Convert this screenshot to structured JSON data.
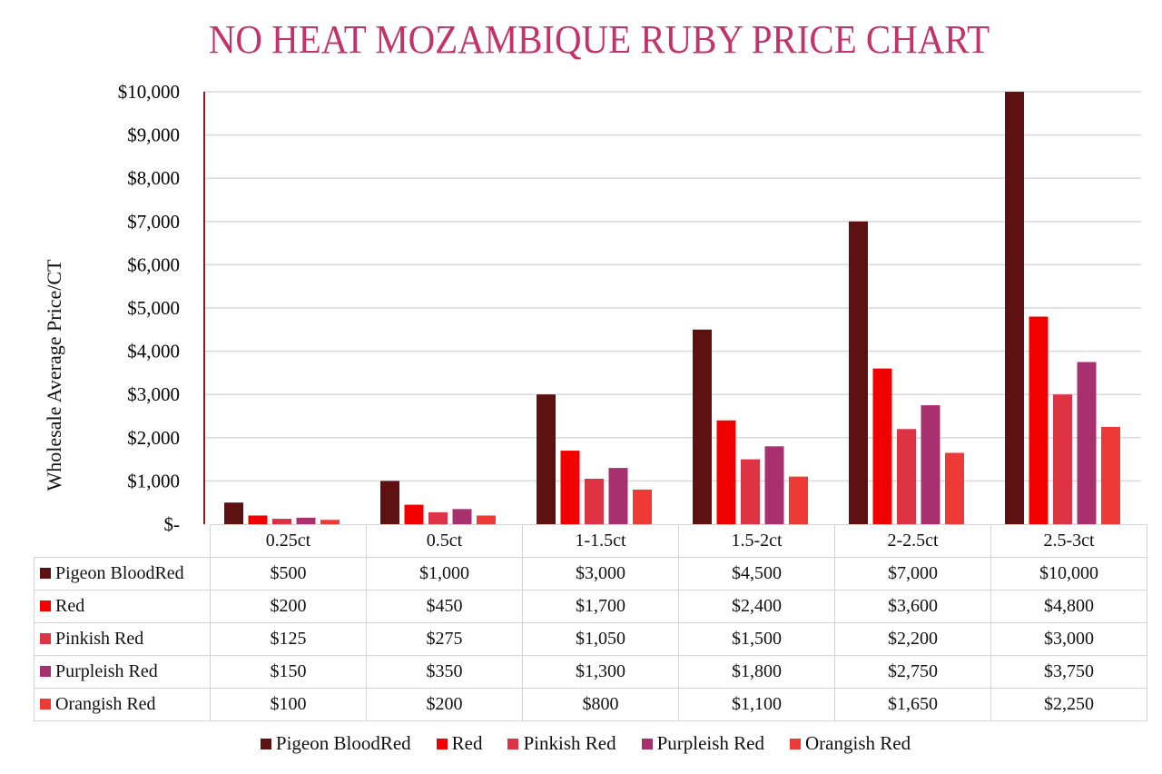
{
  "chart_data": {
    "type": "bar",
    "title": "NO HEAT MOZAMBIQUE RUBY PRICE CHART",
    "xlabel": "",
    "ylabel": "Wholesale Average Price/CT",
    "ylim": [
      0,
      10000
    ],
    "yticks": [
      0,
      1000,
      2000,
      3000,
      4000,
      5000,
      6000,
      7000,
      8000,
      9000,
      10000
    ],
    "ytick_labels": [
      "$-",
      "$1,000",
      "$2,000",
      "$3,000",
      "$4,000",
      "$5,000",
      "$6,000",
      "$7,000",
      "$8,000",
      "$9,000",
      "$10,000"
    ],
    "grid": true,
    "legend_placement": "bottom",
    "categories": [
      "0.25ct",
      "0.5ct",
      "1-1.5ct",
      "1.5-2ct",
      "2-2.5ct",
      "2.5-3ct"
    ],
    "series": [
      {
        "name": "Pigeon BloodRed",
        "color": "#5e1111",
        "values": [
          500,
          1000,
          3000,
          4500,
          7000,
          10000
        ],
        "labels": [
          "$500",
          "$1,000",
          "$3,000",
          "$4,500",
          "$7,000",
          "$10,000"
        ]
      },
      {
        "name": "Red",
        "color": "#f20000",
        "values": [
          200,
          450,
          1700,
          2400,
          3600,
          4800
        ],
        "labels": [
          "$200",
          "$450",
          "$1,700",
          "$2,400",
          "$3,600",
          "$4,800"
        ]
      },
      {
        "name": "Pinkish Red",
        "color": "#de3344",
        "values": [
          125,
          275,
          1050,
          1500,
          2200,
          3000
        ],
        "labels": [
          "$125",
          "$275",
          "$1,050",
          "$1,500",
          "$2,200",
          "$3,000"
        ]
      },
      {
        "name": "Purpleish Red",
        "color": "#a9306f",
        "values": [
          150,
          350,
          1300,
          1800,
          2750,
          3750
        ],
        "labels": [
          "$150",
          "$350",
          "$1,300",
          "$1,800",
          "$2,750",
          "$3,750"
        ]
      },
      {
        "name": "Orangish Red",
        "color": "#ee3a36",
        "values": [
          100,
          200,
          800,
          1100,
          1650,
          2250
        ],
        "labels": [
          "$100",
          "$200",
          "$800",
          "$1,100",
          "$1,650",
          "$2,250"
        ]
      }
    ]
  }
}
